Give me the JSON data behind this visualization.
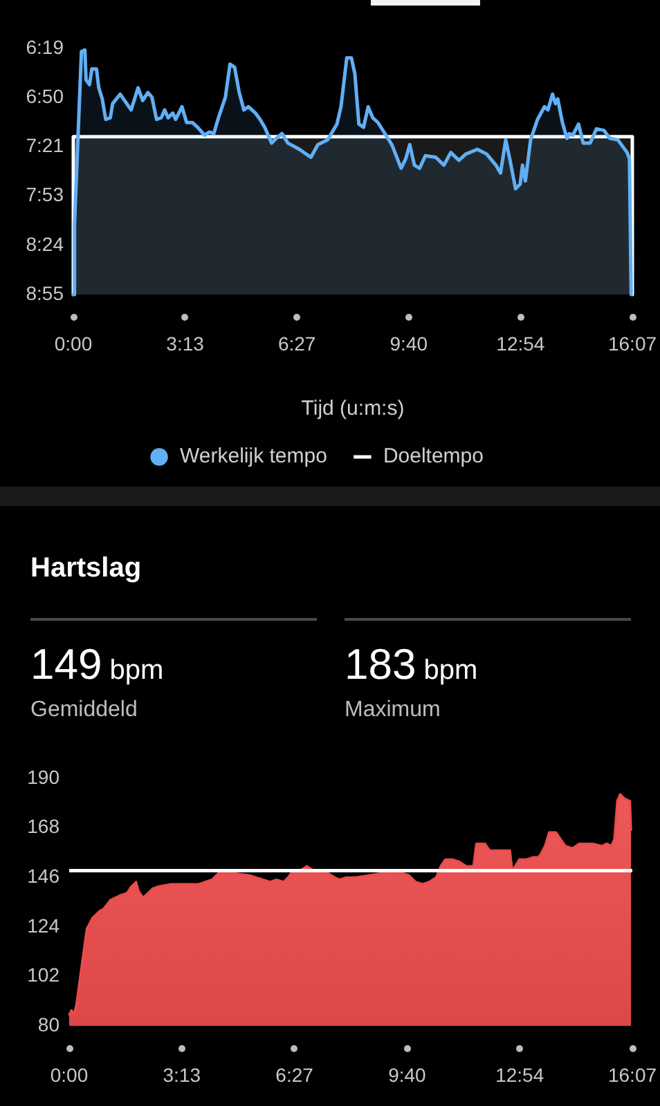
{
  "chart_data": [
    {
      "type": "area",
      "xlabel": "Tijd (u:m:s)",
      "legend": "bottom",
      "xlim": [
        0,
        967
      ],
      "xticks": [
        {
          "value": 0,
          "label": "0:00"
        },
        {
          "value": 193.4,
          "label": "3:13"
        },
        {
          "value": 386.8,
          "label": "6:27"
        },
        {
          "value": 580.2,
          "label": "9:40"
        },
        {
          "value": 773.6,
          "label": "12:54"
        },
        {
          "value": 967,
          "label": "16:07"
        }
      ],
      "ylim": [
        535,
        379
      ],
      "yticks": [
        {
          "value": 379,
          "label": "6:19"
        },
        {
          "value": 410.2,
          "label": "6:50"
        },
        {
          "value": 441.4,
          "label": "7:21"
        },
        {
          "value": 472.6,
          "label": "7:53"
        },
        {
          "value": 503.8,
          "label": "8:24"
        },
        {
          "value": 535,
          "label": "8:55"
        }
      ],
      "series": [
        {
          "name": "Werkelijk tempo",
          "color": "#61aff5",
          "x": [
            0,
            2,
            14,
            20,
            22,
            28,
            32,
            40,
            44,
            50,
            56,
            64,
            68,
            81,
            100,
            112,
            120,
            129,
            136,
            144,
            152,
            158,
            164,
            172,
            177,
            188,
            196,
            206,
            215,
            227,
            235,
            243,
            251,
            263,
            271,
            279,
            287,
            295,
            303,
            315,
            323,
            331,
            343,
            351,
            361,
            371,
            391,
            411,
            423,
            440,
            456,
            463,
            473,
            481,
            487,
            494,
            502,
            510,
            518,
            527,
            539,
            551,
            567,
            575,
            582,
            590,
            599,
            609,
            627,
            641,
            653,
            667,
            679,
            699,
            715,
            731,
            739,
            748,
            755,
            765,
            773,
            777,
            782,
            791,
            803,
            815,
            821,
            829,
            834,
            838,
            846,
            854,
            858,
            864,
            874,
            882,
            894,
            905,
            918,
            928,
            942,
            958,
            962,
            965
          ],
          "values": [
            535,
            491,
            381,
            380,
            399,
            402,
            392,
            392,
            404,
            411,
            424,
            423,
            414,
            408,
            418,
            404,
            412,
            407,
            410,
            424,
            423,
            418,
            423,
            420,
            424,
            416,
            426,
            426,
            429,
            434,
            432,
            433,
            423,
            410,
            389,
            391,
            407,
            418,
            416,
            420,
            424,
            429,
            439,
            436,
            433,
            439,
            443,
            448,
            440,
            437,
            427,
            416,
            385,
            385,
            395,
            427,
            429,
            416,
            423,
            426,
            433,
            440,
            455,
            449,
            440,
            453,
            455,
            447,
            448,
            453,
            445,
            450,
            446,
            443,
            446,
            453,
            458,
            437,
            449,
            468,
            465,
            453,
            463,
            437,
            424,
            416,
            418,
            408,
            414,
            411,
            426,
            436,
            433,
            434,
            427,
            439,
            439,
            430,
            431,
            436,
            437,
            445,
            449,
            535
          ]
        },
        {
          "name": "Doeltempo",
          "color": "#ffffff",
          "x": [
            0,
            0,
            967,
            967
          ],
          "values": [
            535,
            435,
            435,
            535
          ]
        }
      ]
    },
    {
      "type": "other",
      "title": "Hartslag",
      "annotations": [
        "149 bpm",
        "Gemiddeld",
        "183 bpm",
        "Maximum"
      ]
    },
    {
      "type": "area",
      "color": "#ec4b4b",
      "xlim": [
        0,
        967
      ],
      "xticks": [
        {
          "value": 0,
          "label": "0:00"
        },
        {
          "value": 193.4,
          "label": "3:13"
        },
        {
          "value": 386.8,
          "label": "6:27"
        },
        {
          "value": 580.2,
          "label": "9:40"
        },
        {
          "value": 773.6,
          "label": "12:54"
        },
        {
          "value": 967,
          "label": "16:07"
        }
      ],
      "ylim": [
        80,
        190
      ],
      "yticks": [
        80,
        102,
        124,
        146,
        168,
        190
      ],
      "ref_lines": [
        {
          "axis": "y",
          "value": 149,
          "color": "#ffffff"
        }
      ],
      "x": [
        0,
        4,
        8,
        12,
        30,
        40,
        52,
        59,
        71,
        87,
        99,
        107,
        115,
        119,
        127,
        135,
        143,
        154,
        174,
        198,
        222,
        245,
        257,
        277,
        309,
        321,
        333,
        345,
        356,
        368,
        376,
        384,
        396,
        408,
        420,
        444,
        456,
        464,
        476,
        492,
        516,
        539,
        571,
        583,
        595,
        607,
        618,
        630,
        638,
        646,
        658,
        670,
        682,
        694,
        699,
        714,
        722,
        733,
        745,
        757,
        761,
        773,
        785,
        797,
        805,
        809,
        817,
        824,
        836,
        844,
        852,
        864,
        876,
        899,
        915,
        923,
        931,
        936,
        941,
        946,
        954,
        963,
        965
      ],
      "values": [
        85,
        87,
        85,
        89,
        123,
        128,
        131,
        132,
        136,
        138,
        139,
        142,
        144,
        140,
        137,
        139,
        141,
        142,
        143,
        143,
        143,
        145,
        148,
        148,
        147,
        146,
        145,
        144,
        145,
        144,
        146,
        149,
        149,
        151,
        149,
        148,
        146,
        145,
        146,
        146,
        147,
        148,
        148,
        147,
        144,
        143,
        144,
        146,
        151,
        154,
        154,
        153,
        151,
        151,
        161,
        161,
        158,
        158,
        158,
        158,
        149,
        154,
        154,
        155,
        155,
        156,
        160,
        166,
        166,
        163,
        160,
        159,
        161,
        161,
        160,
        161,
        160,
        163,
        180,
        183,
        181,
        180,
        167
      ]
    }
  ]
}
